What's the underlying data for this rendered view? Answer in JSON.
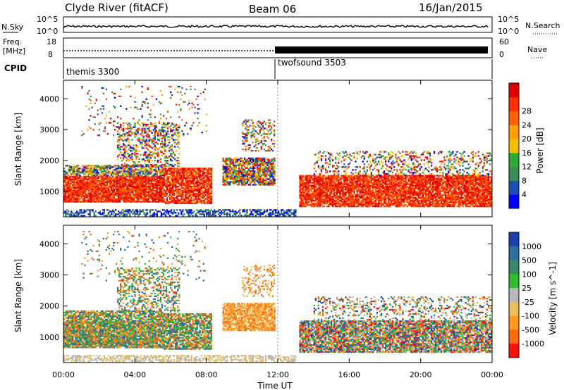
{
  "header": {
    "station": "Clyde River (fitACF)",
    "beam": "Beam 06",
    "date": "16/Jan/2015"
  },
  "top_panels": {
    "nsky_label": "N.Sky",
    "nsearch_label": "N.Search",
    "freq_label_line1": "Freq.",
    "freq_label_line2": "[MHz]",
    "nave_label": "Nave",
    "cpid_label": "CPID",
    "nsky_tick_top": "10^5",
    "nsky_tick_bottom": "10^0",
    "freq_tick_top": "18",
    "freq_tick_bottom": "8",
    "nave_tick_top": "60",
    "nave_tick_bottom": "0",
    "cpid_1": "themis 3300",
    "cpid_2": "twofsound 3503"
  },
  "colors": {
    "power": [
      "#0000ff",
      "#1f4fb4",
      "#3b8c5a",
      "#2faa36",
      "#f0c000",
      "#ffa000",
      "#ff6000",
      "#ff3000",
      "#e00000"
    ],
    "velocity": [
      "#1f3faa",
      "#2f6fa0",
      "#3a8a6a",
      "#33bb33",
      "#b8b8b8",
      "#e8c060",
      "#ff9a20",
      "#ff6a10",
      "#ff1010"
    ]
  },
  "chart_data": [
    {
      "type": "heatmap",
      "title": "Power",
      "ylabel": "Slant Range [km]",
      "xlabel": "Time UT",
      "x_ticks": [
        "00:00",
        "04:00",
        "08:00",
        "12:00",
        "16:00",
        "20:00",
        "00:00"
      ],
      "x_range_hours": [
        0,
        24
      ],
      "y_ticks": [
        1000,
        2000,
        3000,
        4000
      ],
      "y_range_km": [
        180,
        4600
      ],
      "colorbar": {
        "label": "Power [dB]",
        "ticks": [
          4,
          8,
          12,
          16,
          20,
          24,
          28
        ],
        "range": [
          0,
          30
        ]
      }
    },
    {
      "type": "heatmap",
      "title": "Velocity",
      "ylabel": "Slant Range [km]",
      "xlabel": "Time UT",
      "x_ticks": [
        "00:00",
        "04:00",
        "08:00",
        "12:00",
        "16:00",
        "20:00",
        "00:00"
      ],
      "x_range_hours": [
        0,
        24
      ],
      "y_ticks": [
        1000,
        2000,
        3000,
        4000
      ],
      "y_range_km": [
        180,
        4600
      ],
      "colorbar": {
        "label": "Velocity [m s^-1]",
        "ticks": [
          1000,
          500,
          100,
          25,
          -25,
          -100,
          -500,
          -1000
        ]
      }
    }
  ]
}
